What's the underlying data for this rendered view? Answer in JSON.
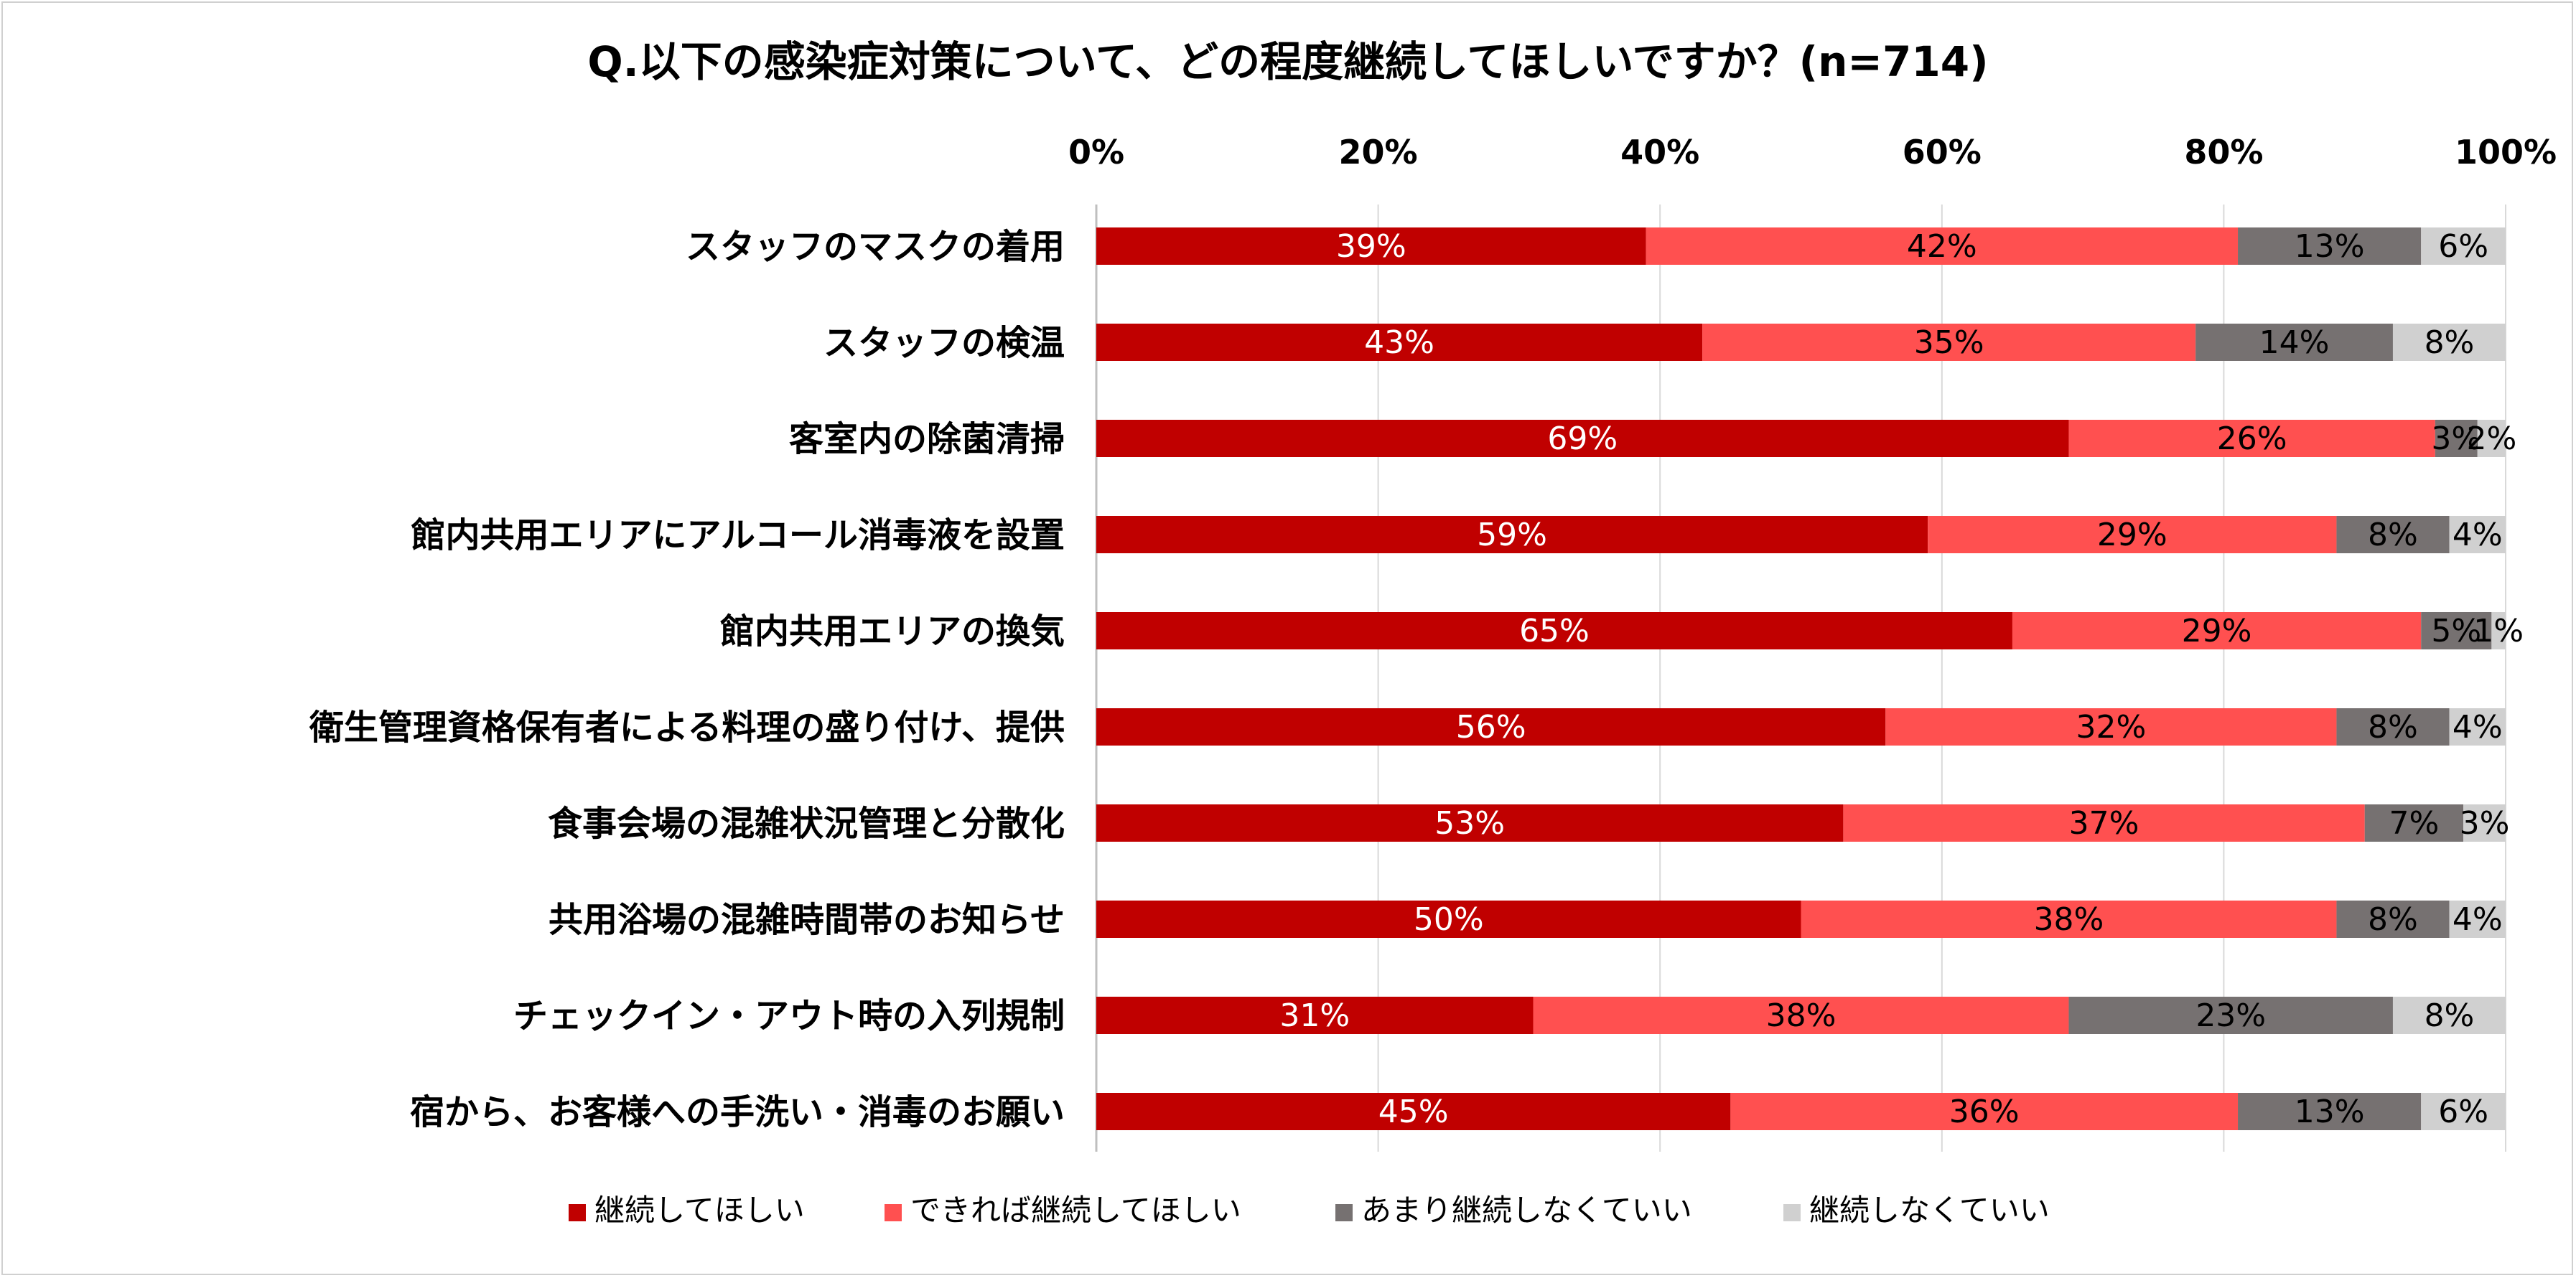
{
  "chart_data": {
    "type": "bar",
    "orientation": "horizontal",
    "stacked": true,
    "percent": true,
    "title": "Q.以下の感染症対策について、どの程度継続してほしいですか？(n=714)",
    "xlim": [
      0,
      100
    ],
    "x_ticks": [
      "0%",
      "20%",
      "40%",
      "60%",
      "80%",
      "100%"
    ],
    "x_tick_values": [
      0,
      20,
      40,
      60,
      80,
      100
    ],
    "grid": true,
    "legend_position": "bottom",
    "categories": [
      "スタッフのマスクの着用",
      "スタッフの検温",
      "客室内の除菌清掃",
      "館内共用エリアにアルコール消毒液を設置",
      "館内共用エリアの換気",
      "衛生管理資格保有者による料理の盛り付け、提供",
      "食事会場の混雑状況管理と分散化",
      "共用浴場の混雑時間帯のお知らせ",
      "チェックイン・アウト時の入列規制",
      "宿から、お客様への手洗い・消毒のお願い"
    ],
    "series": [
      {
        "name": "継続してほしい",
        "color": "#C00000",
        "label_color": "#ffffff",
        "values": [
          39,
          43,
          69,
          59,
          65,
          56,
          53,
          50,
          31,
          45
        ]
      },
      {
        "name": "できれば継続してほしい",
        "color": "#FF5050",
        "label_color": "#000000",
        "values": [
          42,
          35,
          26,
          29,
          29,
          32,
          37,
          38,
          38,
          36
        ]
      },
      {
        "name": "あまり継続しなくていい",
        "color": "#767171",
        "label_color": "#000000",
        "values": [
          13,
          14,
          3,
          8,
          5,
          8,
          7,
          8,
          23,
          13
        ]
      },
      {
        "name": "継続しなくていい",
        "color": "#D0D0D0",
        "label_color": "#000000",
        "values": [
          6,
          8,
          2,
          4,
          1,
          4,
          3,
          4,
          8,
          6
        ]
      }
    ]
  }
}
